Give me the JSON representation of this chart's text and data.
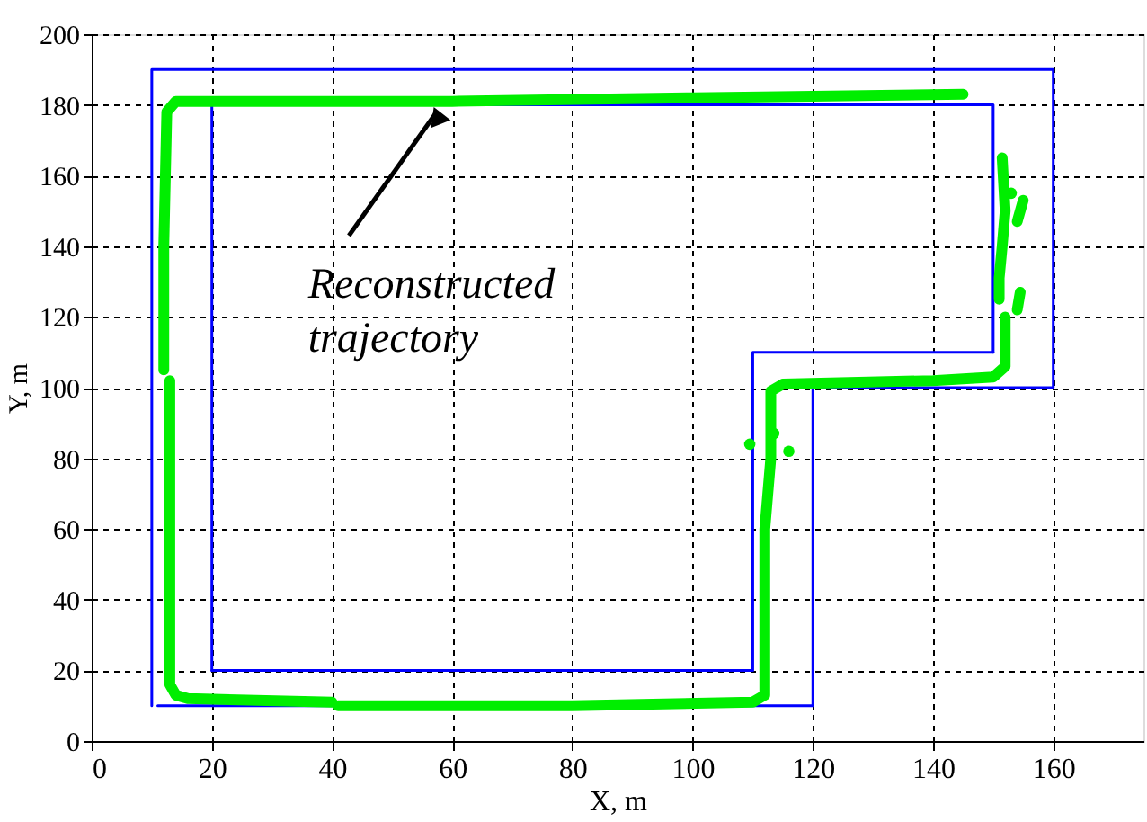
{
  "chart_data": {
    "type": "line",
    "xlabel": "X, m",
    "ylabel": "Y, m",
    "xlim": [
      0,
      175
    ],
    "ylim": [
      0,
      200
    ],
    "xticks": [
      0,
      20,
      40,
      60,
      80,
      100,
      120,
      140,
      160
    ],
    "yticks": [
      0,
      20,
      40,
      60,
      80,
      100,
      120,
      140,
      160,
      180,
      200
    ],
    "grid": true,
    "line_style": "solid",
    "annotations": [
      {
        "text": "Reconstructed trajectory",
        "x": 58,
        "y": 181
      }
    ],
    "series": [
      {
        "color": "#0000ff",
        "x": [
          11,
          120,
          120,
          160,
          160,
          10,
          10
        ],
        "values": [
          10,
          10,
          100,
          100,
          190,
          190,
          10
        ]
      },
      {
        "color": "#0000ff",
        "x": [
          20,
          20,
          150,
          150
        ],
        "values": [
          20,
          180,
          180,
          110
        ]
      },
      {
        "color": "#0000ff",
        "x": [
          150,
          110,
          110,
          20
        ],
        "values": [
          110,
          110,
          20,
          20
        ]
      },
      {
        "color": "#00ee00",
        "x": [
          12,
          12,
          12.5,
          14,
          60,
          100,
          145
        ],
        "values": [
          105,
          140,
          178,
          181,
          181,
          182,
          183
        ]
      },
      {
        "color": "#00ee00",
        "x": [
          13,
          13,
          13,
          14,
          16,
          40
        ],
        "values": [
          102,
          60,
          16,
          13,
          12,
          11
        ]
      },
      {
        "color": "#00ee00",
        "x": [
          41,
          80,
          110,
          112,
          112,
          113,
          113,
          115,
          140,
          150,
          152,
          152
        ],
        "values": [
          10,
          10,
          11,
          13,
          60,
          80,
          99,
          101,
          102,
          103,
          106,
          120
        ]
      },
      {
        "color": "#00ee00",
        "x": [
          151.5,
          152,
          151.5,
          151,
          151
        ],
        "values": [
          165,
          150,
          140,
          131,
          125
        ]
      },
      {
        "color": "#00ee00",
        "x": [
          154,
          154.5
        ],
        "values": [
          122,
          127
        ]
      },
      {
        "color": "#00ee00",
        "x": [
          154,
          155
        ],
        "values": [
          147,
          153
        ]
      },
      {
        "type": "scatter",
        "color": "#00ee00",
        "x": [
          109.5,
          113.5,
          116,
          153
        ],
        "values": [
          84,
          87,
          82,
          155
        ]
      }
    ]
  }
}
